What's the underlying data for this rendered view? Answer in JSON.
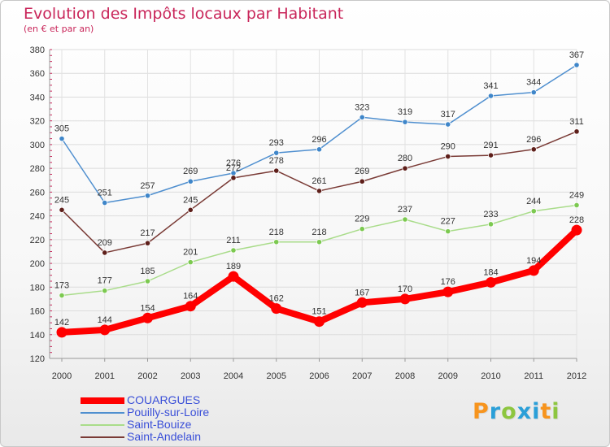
{
  "title": "Evolution des Impôts locaux par Habitant",
  "subtitle": "(en € et par an)",
  "brand": {
    "letters": [
      "P",
      "r",
      "o",
      "x",
      "i",
      "t",
      "i"
    ],
    "colors": [
      "#f7941d",
      "#2a9fd8",
      "#8dc63f",
      "#2a9fd8",
      "#2a9fd8",
      "#f7941d",
      "#8dc63f"
    ]
  },
  "chart_data": {
    "type": "line",
    "title": "Evolution des Impôts locaux par Habitant",
    "subtitle": "(en € et par an)",
    "xlabel": "",
    "ylabel": "",
    "categories": [
      "2000",
      "2001",
      "2002",
      "2003",
      "2004",
      "2005",
      "2006",
      "2007",
      "2008",
      "2009",
      "2010",
      "2011",
      "2012"
    ],
    "ylim": [
      120,
      380
    ],
    "yticks": [
      120,
      140,
      160,
      180,
      200,
      220,
      240,
      260,
      280,
      300,
      320,
      340,
      360,
      380
    ],
    "grid": true,
    "legend_position": "bottom-left",
    "series": [
      {
        "name": "COUARGUES",
        "color": "#ff0000",
        "thick": true,
        "values": [
          142,
          144,
          154,
          164,
          189,
          162,
          151,
          167,
          170,
          176,
          184,
          194,
          228
        ]
      },
      {
        "name": "Pouilly-sur-Loire",
        "color": "#4f8fcf",
        "marker": "#3f86c9",
        "values": [
          305,
          251,
          257,
          269,
          276,
          293,
          296,
          323,
          319,
          317,
          341,
          344,
          367
        ]
      },
      {
        "name": "Saint-Bouize",
        "color": "#a9dc8a",
        "marker": "#7cc950",
        "values": [
          173,
          177,
          185,
          201,
          211,
          218,
          218,
          229,
          237,
          227,
          233,
          244,
          249
        ]
      },
      {
        "name": "Saint-Andelain",
        "color": "#7a3b36",
        "marker": "#5e1f1a",
        "values": [
          245,
          209,
          217,
          245,
          272,
          278,
          261,
          269,
          280,
          290,
          291,
          296,
          311
        ]
      }
    ]
  }
}
